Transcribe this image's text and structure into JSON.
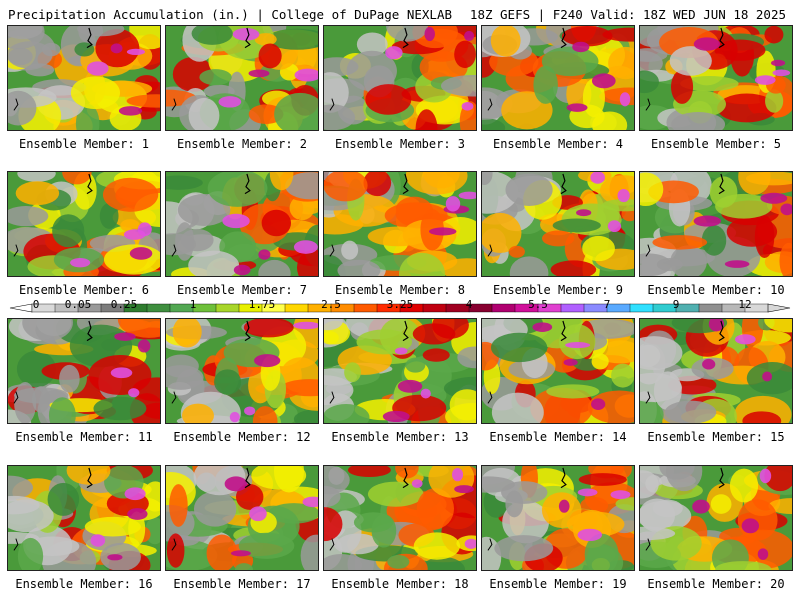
{
  "header": {
    "left_title": "Precipitation Accumulation (in.) | College of DuPage NEXLAB",
    "right_title": "18Z GEFS | F240 Valid: 18Z WED JUN 18 2025"
  },
  "members": [
    {
      "label": "Ensemble Member: 1"
    },
    {
      "label": "Ensemble Member: 2"
    },
    {
      "label": "Ensemble Member: 3"
    },
    {
      "label": "Ensemble Member: 4"
    },
    {
      "label": "Ensemble Member: 5"
    },
    {
      "label": "Ensemble Member: 6"
    },
    {
      "label": "Ensemble Member: 7"
    },
    {
      "label": "Ensemble Member: 8"
    },
    {
      "label": "Ensemble Member: 9"
    },
    {
      "label": "Ensemble Member: 10"
    },
    {
      "label": "Ensemble Member: 11"
    },
    {
      "label": "Ensemble Member: 12"
    },
    {
      "label": "Ensemble Member: 13"
    },
    {
      "label": "Ensemble Member: 14"
    },
    {
      "label": "Ensemble Member: 15"
    },
    {
      "label": "Ensemble Member: 16"
    },
    {
      "label": "Ensemble Member: 17"
    },
    {
      "label": "Ensemble Member: 18"
    },
    {
      "label": "Ensemble Member: 19"
    },
    {
      "label": "Ensemble Member: 20"
    }
  ],
  "legend": {
    "tick_labels": [
      "0",
      "0.05",
      "0.25",
      "1",
      "1.75",
      "2.5",
      "3.25",
      "4",
      "5.5",
      "7",
      "9",
      "12"
    ],
    "tick_positions": [
      0,
      2,
      4,
      7,
      10,
      13,
      16,
      19,
      22,
      25,
      28,
      31
    ],
    "colors": [
      "#d9d9d9",
      "#bfbfbf",
      "#9a9a9a",
      "#7d7d7d",
      "#2f7d2f",
      "#3f8f3f",
      "#52a852",
      "#6ec03a",
      "#a8d62a",
      "#e8f000",
      "#ffff4a",
      "#ffd700",
      "#ffb000",
      "#ff8c00",
      "#ff5a00",
      "#ff2a00",
      "#e00000",
      "#c00010",
      "#a00020",
      "#880030",
      "#b00070",
      "#d0109a",
      "#e040d0",
      "#b060ff",
      "#8a8aff",
      "#5aaaff",
      "#30e0ff",
      "#30ccd0",
      "#50b0b0",
      "#909090",
      "#b8b8b8",
      "#d8d8d8"
    ]
  }
}
